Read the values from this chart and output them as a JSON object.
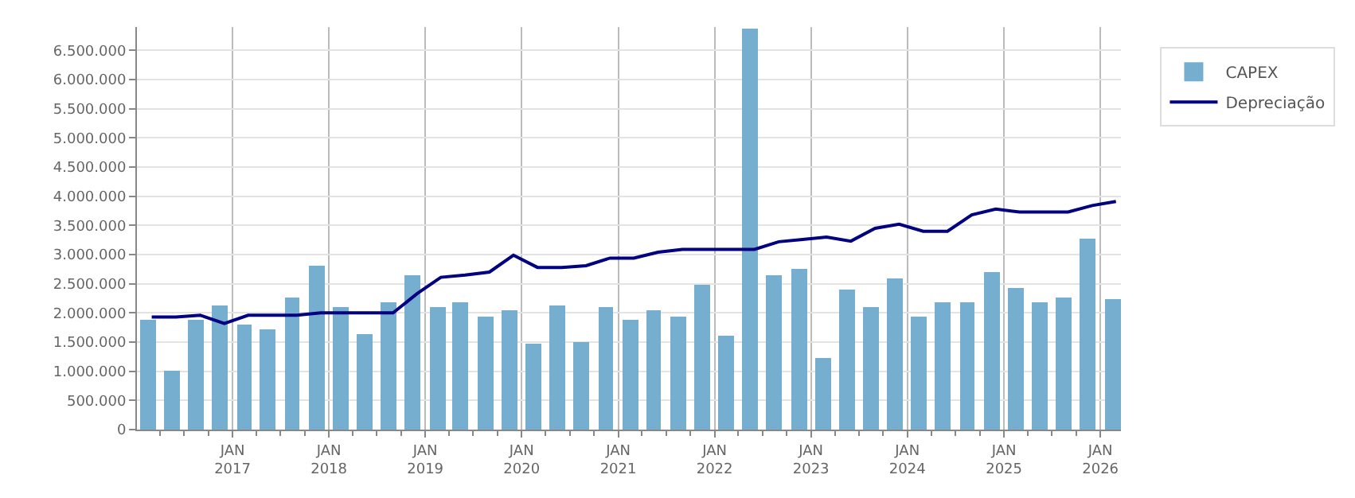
{
  "chart_data": {
    "type": "bar",
    "x": [
      "2016-02-15",
      "2016-05-15",
      "2016-08-15",
      "2016-11-15",
      "2017-02-15",
      "2017-05-15",
      "2017-08-15",
      "2017-11-15",
      "2018-02-15",
      "2018-05-15",
      "2018-08-15",
      "2018-11-15",
      "2019-02-15",
      "2019-05-15",
      "2019-08-15",
      "2019-11-15",
      "2020-02-15",
      "2020-05-15",
      "2020-08-15",
      "2020-11-15",
      "2021-02-15",
      "2021-05-15",
      "2021-08-15",
      "2021-11-15",
      "2022-02-15",
      "2022-05-15",
      "2022-08-15",
      "2022-11-15",
      "2023-02-15",
      "2023-05-15",
      "2023-08-15",
      "2023-11-15",
      "2024-02-15",
      "2024-05-15",
      "2024-08-15",
      "2024-11-15",
      "2025-02-15",
      "2025-05-15",
      "2025-08-15",
      "2025-11-15",
      "2026-02-15"
    ],
    "series": [
      {
        "name": "CAPEX",
        "color": "#76aed0",
        "values": [
          1880000,
          1010000,
          1880000,
          2140000,
          1800000,
          1720000,
          2270000,
          2800000,
          2110000,
          1640000,
          2170000,
          2640000,
          2110000,
          2170000,
          1930000,
          2040000,
          1480000,
          2140000,
          1510000,
          2110000,
          1880000,
          2040000,
          1930000,
          2480000,
          1610000,
          6880000,
          2640000,
          2750000,
          1220000,
          2400000,
          2090000,
          2590000,
          1930000,
          2170000,
          2190000,
          2690000,
          2430000,
          2190000,
          2270000,
          3270000,
          2250000
        ]
      },
      {
        "name": "Depreciação",
        "type": "line",
        "color": "#000080",
        "x": [
          "2016-03-01",
          "2016-06-01",
          "2016-09-01",
          "2016-12-01",
          "2017-03-01",
          "2017-06-01",
          "2017-09-01",
          "2017-12-01",
          "2018-03-01",
          "2018-06-01",
          "2018-09-01",
          "2018-12-01",
          "2019-03-01",
          "2019-06-01",
          "2019-09-01",
          "2019-12-01",
          "2020-03-01",
          "2020-06-01",
          "2020-09-01",
          "2020-12-01",
          "2021-03-01",
          "2021-06-01",
          "2021-09-01",
          "2021-12-01",
          "2022-03-01",
          "2022-06-01",
          "2022-09-01",
          "2022-12-01",
          "2023-03-01",
          "2023-06-01",
          "2023-09-01",
          "2023-12-01",
          "2024-03-01",
          "2024-06-01",
          "2024-09-01",
          "2024-12-01",
          "2025-03-01",
          "2025-06-01",
          "2025-09-01",
          "2025-12-01",
          "2026-03-01"
        ],
        "values": [
          1930000,
          1930000,
          1960000,
          1820000,
          1960000,
          1960000,
          1960000,
          2000000,
          2000000,
          2000000,
          2000000,
          2330000,
          2610000,
          2650000,
          2700000,
          2990000,
          2780000,
          2780000,
          2810000,
          2940000,
          2940000,
          3040000,
          3090000,
          3090000,
          3090000,
          3090000,
          3220000,
          3260000,
          3300000,
          3230000,
          3450000,
          3520000,
          3400000,
          3400000,
          3680000,
          3780000,
          3730000,
          3730000,
          3730000,
          3840000,
          3910000
        ]
      }
    ],
    "xlim": [
      "2016-01-05",
      "2026-03-20"
    ],
    "xticks": [
      {
        "value": "2017-01-01",
        "label": "JAN\n2017"
      },
      {
        "value": "2018-01-01",
        "label": "JAN\n2018"
      },
      {
        "value": "2019-01-01",
        "label": "JAN\n2019"
      },
      {
        "value": "2020-01-01",
        "label": "JAN\n2020"
      },
      {
        "value": "2021-01-01",
        "label": "JAN\n2021"
      },
      {
        "value": "2022-01-01",
        "label": "JAN\n2022"
      },
      {
        "value": "2023-01-01",
        "label": "JAN\n2023"
      },
      {
        "value": "2024-01-01",
        "label": "JAN\n2024"
      },
      {
        "value": "2025-01-01",
        "label": "JAN\n2025"
      },
      {
        "value": "2026-01-01",
        "label": "JAN\n2026"
      }
    ],
    "ylim": [
      0,
      6900000
    ],
    "yticks": [
      {
        "value": 0,
        "label": "0"
      },
      {
        "value": 500000,
        "label": "500.000"
      },
      {
        "value": 1000000,
        "label": "1.000.000"
      },
      {
        "value": 1500000,
        "label": "1.500.000"
      },
      {
        "value": 2000000,
        "label": "2.000.000"
      },
      {
        "value": 2500000,
        "label": "2.500.000"
      },
      {
        "value": 3000000,
        "label": "3.000.000"
      },
      {
        "value": 3500000,
        "label": "3.500.000"
      },
      {
        "value": 4000000,
        "label": "4.000.000"
      },
      {
        "value": 4500000,
        "label": "4.500.000"
      },
      {
        "value": 5000000,
        "label": "5.000.000"
      },
      {
        "value": 5500000,
        "label": "5.500.000"
      },
      {
        "value": 6000000,
        "label": "6.000.000"
      },
      {
        "value": 6500000,
        "label": "6.500.000"
      }
    ],
    "grid": true,
    "legend": "top right",
    "marker": "none",
    "line_style": "solid"
  }
}
